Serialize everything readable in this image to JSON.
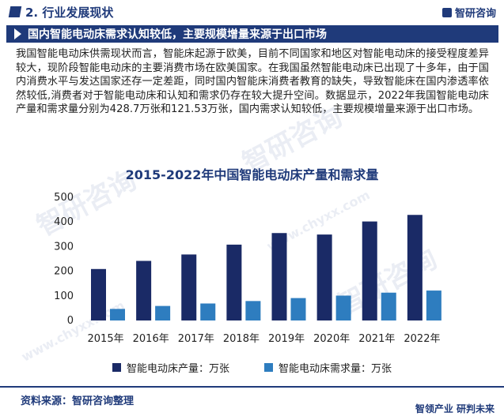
{
  "header": {
    "section_title": "2. 行业发展现状",
    "brand": "智研咨询"
  },
  "banner": {
    "title": "国内智能电动床需求认知较低，主要规模增量来源于出口市场"
  },
  "body_text": "我国智能电动床供需现状而言，智能床起源于欧美，目前不同国家和地区对智能电动床的接受程度差异较大，现阶段智能电动床的主要消费市场在欧美国家。在我国虽然智能电动床已出现了十多年，由于国内消费水平与发达国家还存一定差距，同时国内智能床消费者教育的缺失，导致智能床在国内渗透率依然较低,消费者对于智能电动床和认知和需求仍存在较大提升空间。数据显示，2022年我国智能电动床产量和需求量分别为428.7万张和121.53万张，国内需求认知较低，主要规模增量来源于出口市场。",
  "watermarks": [
    "智研咨询",
    "www.chyxx.com"
  ],
  "chart_data": {
    "type": "bar",
    "title": "2015-2022年中国智能电动床产量和需求量",
    "categories": [
      "2015年",
      "2016年",
      "2017年",
      "2018年",
      "2019年",
      "2020年",
      "2021年",
      "2022年"
    ],
    "series": [
      {
        "name": "智能电动床产量：万张",
        "color": "#1a2a66",
        "values": [
          209,
          242,
          268,
          308,
          355,
          349,
          402,
          428.7
        ]
      },
      {
        "name": "智能电动床需求量：万张",
        "color": "#2e7dbf",
        "values": [
          47,
          59,
          69,
          79,
          91,
          101,
          113,
          121.53
        ]
      }
    ],
    "y_ticks": [
      0,
      100,
      200,
      300,
      400,
      500
    ],
    "ylim": [
      0,
      500
    ],
    "grid": false,
    "legend": "bottom"
  },
  "footer": {
    "source": "资料来源：智研咨询整理",
    "slogan": "智领产业  研判未来"
  }
}
